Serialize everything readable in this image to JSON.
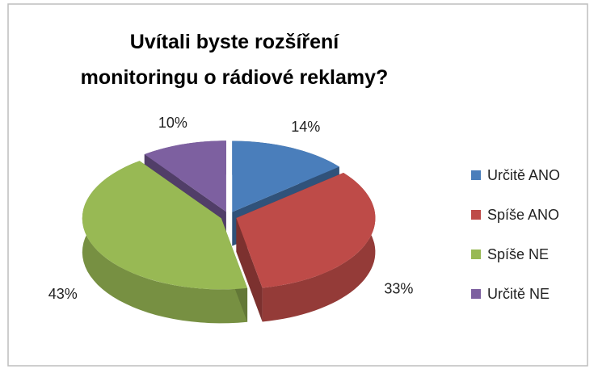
{
  "chart_data": {
    "type": "pie",
    "title": "Uvítali byste rozšíření monitoringu o rádiové reklamy?",
    "categories": [
      "Určitě ANO",
      "Spíše ANO",
      "Spíše NE",
      "Určitě NE"
    ],
    "values": [
      14,
      33,
      43,
      10
    ],
    "value_labels": [
      "14%",
      "33%",
      "43%",
      "10%"
    ],
    "colors": [
      "#4a7ebb",
      "#be4b48",
      "#98b954",
      "#7d60a0"
    ],
    "legend": "right"
  }
}
